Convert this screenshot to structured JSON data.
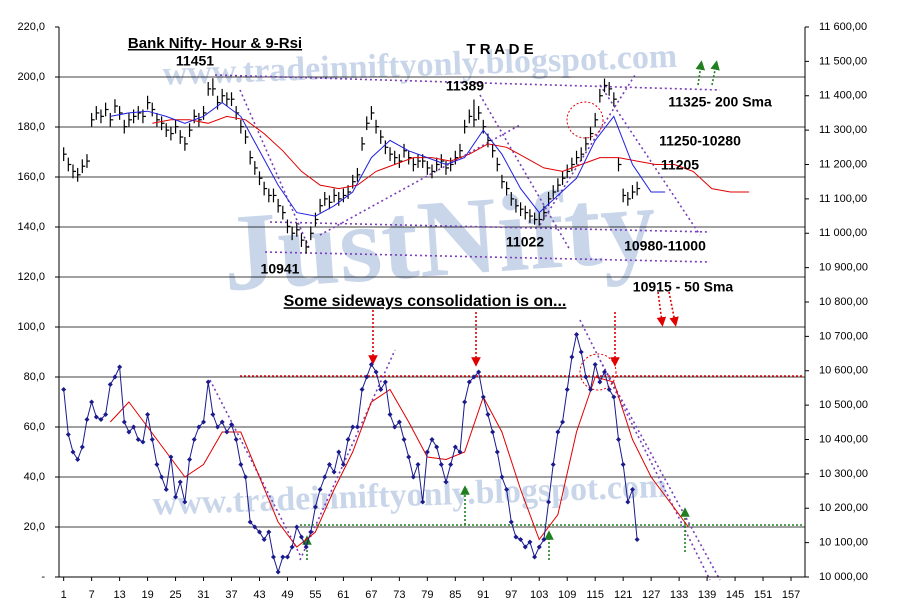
{
  "chart_data": {
    "type": "ohlc",
    "title": "Bank Nifty- Hour & 9-Rsi",
    "xlim": [
      0,
      160
    ],
    "xticks": [
      1,
      7,
      13,
      19,
      25,
      31,
      37,
      43,
      49,
      55,
      61,
      67,
      73,
      79,
      85,
      91,
      97,
      103,
      109,
      115,
      121,
      127,
      133,
      139,
      145,
      151,
      157
    ],
    "ylim": [
      0,
      220
    ],
    "yticks": [
      {
        "value": 0,
        "label": "-"
      },
      {
        "value": 20,
        "label": "20,0"
      },
      {
        "value": 40,
        "label": "40,0"
      },
      {
        "value": 60,
        "label": "60,0"
      },
      {
        "value": 80,
        "label": "80,0"
      },
      {
        "value": 100,
        "label": "100,0"
      },
      {
        "value": 120,
        "label": "120,0"
      },
      {
        "value": 140,
        "label": "140,0"
      },
      {
        "value": 160,
        "label": "160,0"
      },
      {
        "value": 180,
        "label": "180,0"
      },
      {
        "value": 200,
        "label": "200,0"
      },
      {
        "value": 220,
        "label": "220,0"
      }
    ],
    "y2lim": [
      10000,
      11600
    ],
    "y2ticks": [
      {
        "value": 10000,
        "label": "10 000,00"
      },
      {
        "value": 10100,
        "label": "10 100,00"
      },
      {
        "value": 10200,
        "label": "10 200,00"
      },
      {
        "value": 10300,
        "label": "10 300,00"
      },
      {
        "value": 10400,
        "label": "10 400,00"
      },
      {
        "value": 10500,
        "label": "10 500,00"
      },
      {
        "value": 10600,
        "label": "10 600,00"
      },
      {
        "value": 10700,
        "label": "10 700,00"
      },
      {
        "value": 10800,
        "label": "10 800,00"
      },
      {
        "value": 10900,
        "label": "10 900,00"
      },
      {
        "value": 11000,
        "label": "11 000,00"
      },
      {
        "value": 11100,
        "label": "11 100,00"
      },
      {
        "value": 11200,
        "label": "11 200,00"
      },
      {
        "value": 11300,
        "label": "11 300,00"
      },
      {
        "value": 11400,
        "label": "11 400,00"
      },
      {
        "value": 11500,
        "label": "11 500,00"
      },
      {
        "value": 11600,
        "label": "11 600,00"
      }
    ],
    "grid": true,
    "x": [
      1,
      2,
      3,
      4,
      5,
      6,
      7,
      8,
      9,
      10,
      11,
      12,
      13,
      14,
      15,
      16,
      17,
      18,
      19,
      20,
      21,
      22,
      23,
      24,
      25,
      26,
      27,
      28,
      29,
      30,
      31,
      32,
      33,
      34,
      35,
      36,
      37,
      38,
      39,
      40,
      41,
      42,
      43,
      44,
      45,
      46,
      47,
      48,
      49,
      50,
      51,
      52,
      53,
      54,
      55,
      56,
      57,
      58,
      59,
      60,
      61,
      62,
      63,
      64,
      65,
      66,
      67,
      68,
      69,
      70,
      71,
      72,
      73,
      74,
      75,
      76,
      77,
      78,
      79,
      80,
      81,
      82,
      83,
      84,
      85,
      86,
      87,
      88,
      89,
      90,
      91,
      92,
      93,
      94,
      95,
      96,
      97,
      98,
      99,
      100,
      101,
      102,
      103,
      104,
      105,
      106,
      107,
      108,
      109,
      110,
      111,
      112,
      113,
      114,
      115,
      116,
      117,
      118,
      119,
      120,
      121,
      122,
      123,
      124
    ],
    "ohlc": {
      "axis": "y2",
      "color": "#000000",
      "high": [
        11250,
        11220,
        11200,
        11190,
        11215,
        11230,
        11350,
        11370,
        11360,
        11380,
        11350,
        11390,
        11370,
        11330,
        11350,
        11360,
        11370,
        11360,
        11400,
        11380,
        11350,
        11340,
        11320,
        11310,
        11330,
        11300,
        11280,
        11320,
        11360,
        11350,
        11370,
        11440,
        11451,
        11400,
        11420,
        11410,
        11410,
        11370,
        11330,
        11300,
        11240,
        11210,
        11180,
        11150,
        11130,
        11130,
        11100,
        11080,
        11040,
        11020,
        11030,
        11000,
        10980,
        11020,
        11060,
        11100,
        11120,
        11110,
        11130,
        11120,
        11130,
        11140,
        11170,
        11190,
        11280,
        11340,
        11370,
        11330,
        11300,
        11270,
        11250,
        11240,
        11230,
        11260,
        11240,
        11220,
        11230,
        11230,
        11210,
        11200,
        11220,
        11230,
        11210,
        11220,
        11240,
        11260,
        11330,
        11360,
        11389,
        11370,
        11330,
        11290,
        11260,
        11220,
        11170,
        11150,
        11120,
        11100,
        11090,
        11080,
        11070,
        11060,
        11060,
        11080,
        11120,
        11140,
        11160,
        11180,
        11200,
        11220,
        11240,
        11250,
        11280,
        11310,
        11350,
        11420,
        11450,
        11440,
        11410,
        11220,
        11130,
        11120,
        11140,
        11150
      ],
      "low": [
        11210,
        11180,
        11160,
        11150,
        11175,
        11190,
        11310,
        11330,
        11320,
        11340,
        11310,
        11350,
        11330,
        11290,
        11310,
        11320,
        11330,
        11320,
        11360,
        11340,
        11310,
        11300,
        11280,
        11270,
        11290,
        11260,
        11240,
        11280,
        11320,
        11310,
        11330,
        11400,
        11400,
        11360,
        11380,
        11370,
        11370,
        11330,
        11290,
        11260,
        11200,
        11170,
        11140,
        11110,
        11090,
        11090,
        11060,
        11040,
        11000,
        10980,
        10990,
        10960,
        10941,
        10980,
        11020,
        11060,
        11080,
        11070,
        11090,
        11080,
        11090,
        11100,
        11130,
        11150,
        11240,
        11300,
        11330,
        11290,
        11260,
        11230,
        11210,
        11200,
        11190,
        11220,
        11200,
        11180,
        11190,
        11190,
        11170,
        11160,
        11180,
        11190,
        11170,
        11180,
        11200,
        11220,
        11290,
        11320,
        11310,
        11330,
        11290,
        11250,
        11220,
        11180,
        11130,
        11110,
        11080,
        11060,
        11050,
        11040,
        11030,
        11025,
        11022,
        11040,
        11080,
        11100,
        11120,
        11140,
        11160,
        11180,
        11200,
        11210,
        11240,
        11270,
        11310,
        11380,
        11410,
        11400,
        11370,
        11180,
        11090,
        11080,
        11100,
        11110
      ],
      "close": [
        11230,
        11200,
        11180,
        11170,
        11195,
        11210,
        11330,
        11350,
        11340,
        11360,
        11330,
        11370,
        11350,
        11310,
        11330,
        11340,
        11350,
        11340,
        11380,
        11360,
        11330,
        11320,
        11300,
        11290,
        11310,
        11280,
        11260,
        11300,
        11340,
        11330,
        11350,
        11420,
        11420,
        11380,
        11400,
        11390,
        11390,
        11350,
        11310,
        11280,
        11220,
        11190,
        11160,
        11130,
        11110,
        11110,
        11080,
        11060,
        11020,
        11000,
        11010,
        10980,
        10960,
        11000,
        11040,
        11080,
        11100,
        11090,
        11110,
        11100,
        11110,
        11120,
        11150,
        11170,
        11260,
        11320,
        11350,
        11310,
        11280,
        11250,
        11230,
        11220,
        11210,
        11240,
        11220,
        11200,
        11210,
        11210,
        11190,
        11180,
        11200,
        11210,
        11190,
        11200,
        11220,
        11240,
        11310,
        11340,
        11330,
        11350,
        11310,
        11270,
        11240,
        11200,
        11150,
        11130,
        11100,
        11080,
        11070,
        11060,
        11050,
        11040,
        11040,
        11060,
        11100,
        11120,
        11140,
        11160,
        11180,
        11200,
        11220,
        11230,
        11260,
        11290,
        11330,
        11400,
        11430,
        11420,
        11390,
        11200,
        11110,
        11100,
        11120,
        11130
      ]
    },
    "price_ma": [
      {
        "axis": "y2",
        "color": "#e00000",
        "x": [
          20,
          24,
          28,
          32,
          36,
          40,
          44,
          48,
          52,
          56,
          60,
          64,
          68,
          72,
          76,
          80,
          84,
          88,
          92,
          96,
          100,
          104,
          108,
          112,
          116,
          120,
          124,
          128,
          132,
          136,
          140,
          144,
          148
        ],
        "values": [
          11320,
          11330,
          11330,
          11320,
          11340,
          11330,
          11290,
          11240,
          11180,
          11140,
          11130,
          11140,
          11180,
          11200,
          11220,
          11220,
          11210,
          11230,
          11260,
          11250,
          11220,
          11190,
          11180,
          11200,
          11220,
          11220,
          11210,
          11200,
          11200,
          11180,
          11130,
          11120,
          11120
        ]
      },
      {
        "axis": "y2",
        "color": "#2020e0",
        "x": [
          11,
          15,
          19,
          23,
          27,
          31,
          35,
          39,
          43,
          47,
          51,
          55,
          59,
          63,
          67,
          71,
          75,
          79,
          83,
          87,
          91,
          95,
          99,
          103,
          107,
          111,
          115,
          119,
          123,
          127,
          130
        ],
        "values": [
          11340,
          11350,
          11355,
          11340,
          11320,
          11340,
          11380,
          11340,
          11240,
          11140,
          11060,
          11050,
          11080,
          11120,
          11220,
          11270,
          11240,
          11220,
          11200,
          11220,
          11300,
          11230,
          11130,
          11060,
          11110,
          11160,
          11270,
          11340,
          11200,
          11120,
          11120
        ]
      }
    ],
    "rsi": {
      "color": "#1a1a8c",
      "values": [
        75,
        57,
        50,
        47,
        52,
        63,
        70,
        64,
        63,
        65,
        77,
        80,
        84,
        62,
        58,
        60,
        55,
        54,
        65,
        55,
        45,
        40,
        35,
        48,
        32,
        38,
        30,
        47,
        55,
        60,
        62,
        78,
        65,
        60,
        62,
        58,
        61,
        55,
        45,
        40,
        22,
        20,
        18,
        15,
        18,
        8,
        2,
        8,
        8,
        12,
        20,
        16,
        12,
        18,
        28,
        35,
        40,
        45,
        42,
        50,
        45,
        55,
        60,
        60,
        75,
        80,
        85,
        82,
        75,
        78,
        65,
        60,
        62,
        55,
        48,
        40,
        45,
        30,
        50,
        55,
        52,
        45,
        38,
        45,
        52,
        50,
        70,
        78,
        80,
        82,
        72,
        65,
        58,
        50,
        40,
        35,
        22,
        16,
        15,
        12,
        14,
        8,
        12,
        15,
        30,
        45,
        58,
        62,
        75,
        88,
        97,
        90,
        80,
        75,
        85,
        78,
        82,
        75,
        72,
        55,
        45,
        30,
        35,
        15
      ]
    },
    "rsi_ma": {
      "color": "#e00000",
      "x": [
        11,
        15,
        19,
        23,
        27,
        31,
        35,
        39,
        43,
        47,
        51,
        55,
        59,
        63,
        67,
        71,
        75,
        79,
        83,
        87,
        91,
        95,
        99,
        103,
        107,
        111,
        115,
        119,
        123,
        127,
        131,
        135
      ],
      "values": [
        62,
        70,
        60,
        50,
        40,
        45,
        58,
        58,
        40,
        22,
        12,
        18,
        35,
        50,
        70,
        75,
        62,
        48,
        47,
        50,
        72,
        58,
        35,
        15,
        25,
        58,
        80,
        78,
        55,
        40,
        30,
        20
      ]
    },
    "annotations": [
      {
        "text": "T R A D E",
        "color": "#1a1a8c"
      },
      {
        "text": "11451",
        "color": "#e00000"
      },
      {
        "text": "11389",
        "color": "#e00000"
      },
      {
        "text": "11325- 200 Sma",
        "color": "#e00000"
      },
      {
        "text": "11250-10280",
        "color": "#e00000"
      },
      {
        "text": "11205",
        "color": "#ff00ff"
      },
      {
        "text": "11022",
        "color": "#208020"
      },
      {
        "text": "10980-11000",
        "color": "#208020"
      },
      {
        "text": "10941",
        "color": "#208020"
      },
      {
        "text": "10915 - 50 Sma",
        "color": "#208020"
      },
      {
        "text": "Some sideways consolidation is on...",
        "color": "#1a1a8c"
      }
    ],
    "watermarks": [
      "www.tradeinniftyonly.blogspot.com",
      "JustNifty",
      "www.tradeinniftyonly.blogspot.com"
    ]
  }
}
